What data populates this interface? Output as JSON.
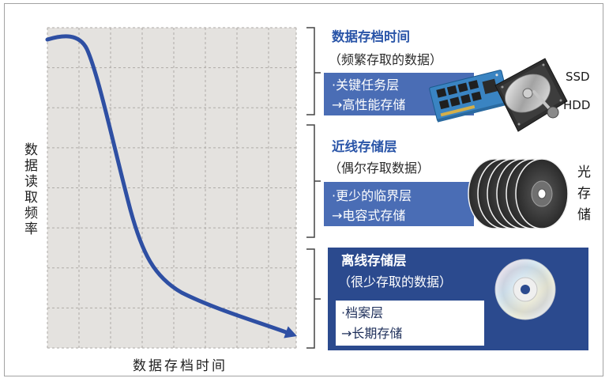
{
  "axes": {
    "y_label": "数据读取频率",
    "x_label": "数据存档时间"
  },
  "tiers": [
    {
      "title": "数据存档时间",
      "subtitle": "（频繁存取的数据）",
      "line1": "·关键任务层",
      "line2": "→高性能存储",
      "media": [
        {
          "label": "SSD",
          "icon": "ssd-icon"
        },
        {
          "label": "HDD",
          "icon": "hdd-icon"
        }
      ]
    },
    {
      "title": "近线存储层",
      "subtitle": "（偶尔存取数据）",
      "line1": "·更少的临界层",
      "line2": "→电容式存储",
      "media": [
        {
          "label": "光存储",
          "icon": "optical-disc-stack-icon"
        }
      ]
    },
    {
      "title": "离线存储层",
      "subtitle": "（很少存取的数据）",
      "line1": "·档案层",
      "line2": "→长期存储",
      "media": [
        {
          "icon": "cd-icon"
        }
      ]
    }
  ],
  "colors": {
    "heading_blue": "#2a55a8",
    "tier_box_blue": "#4a6db5",
    "offline_box_navy": "#2b4a8e",
    "curve_blue": "#2e4fa3",
    "chart_background": "#e4e2df"
  }
}
